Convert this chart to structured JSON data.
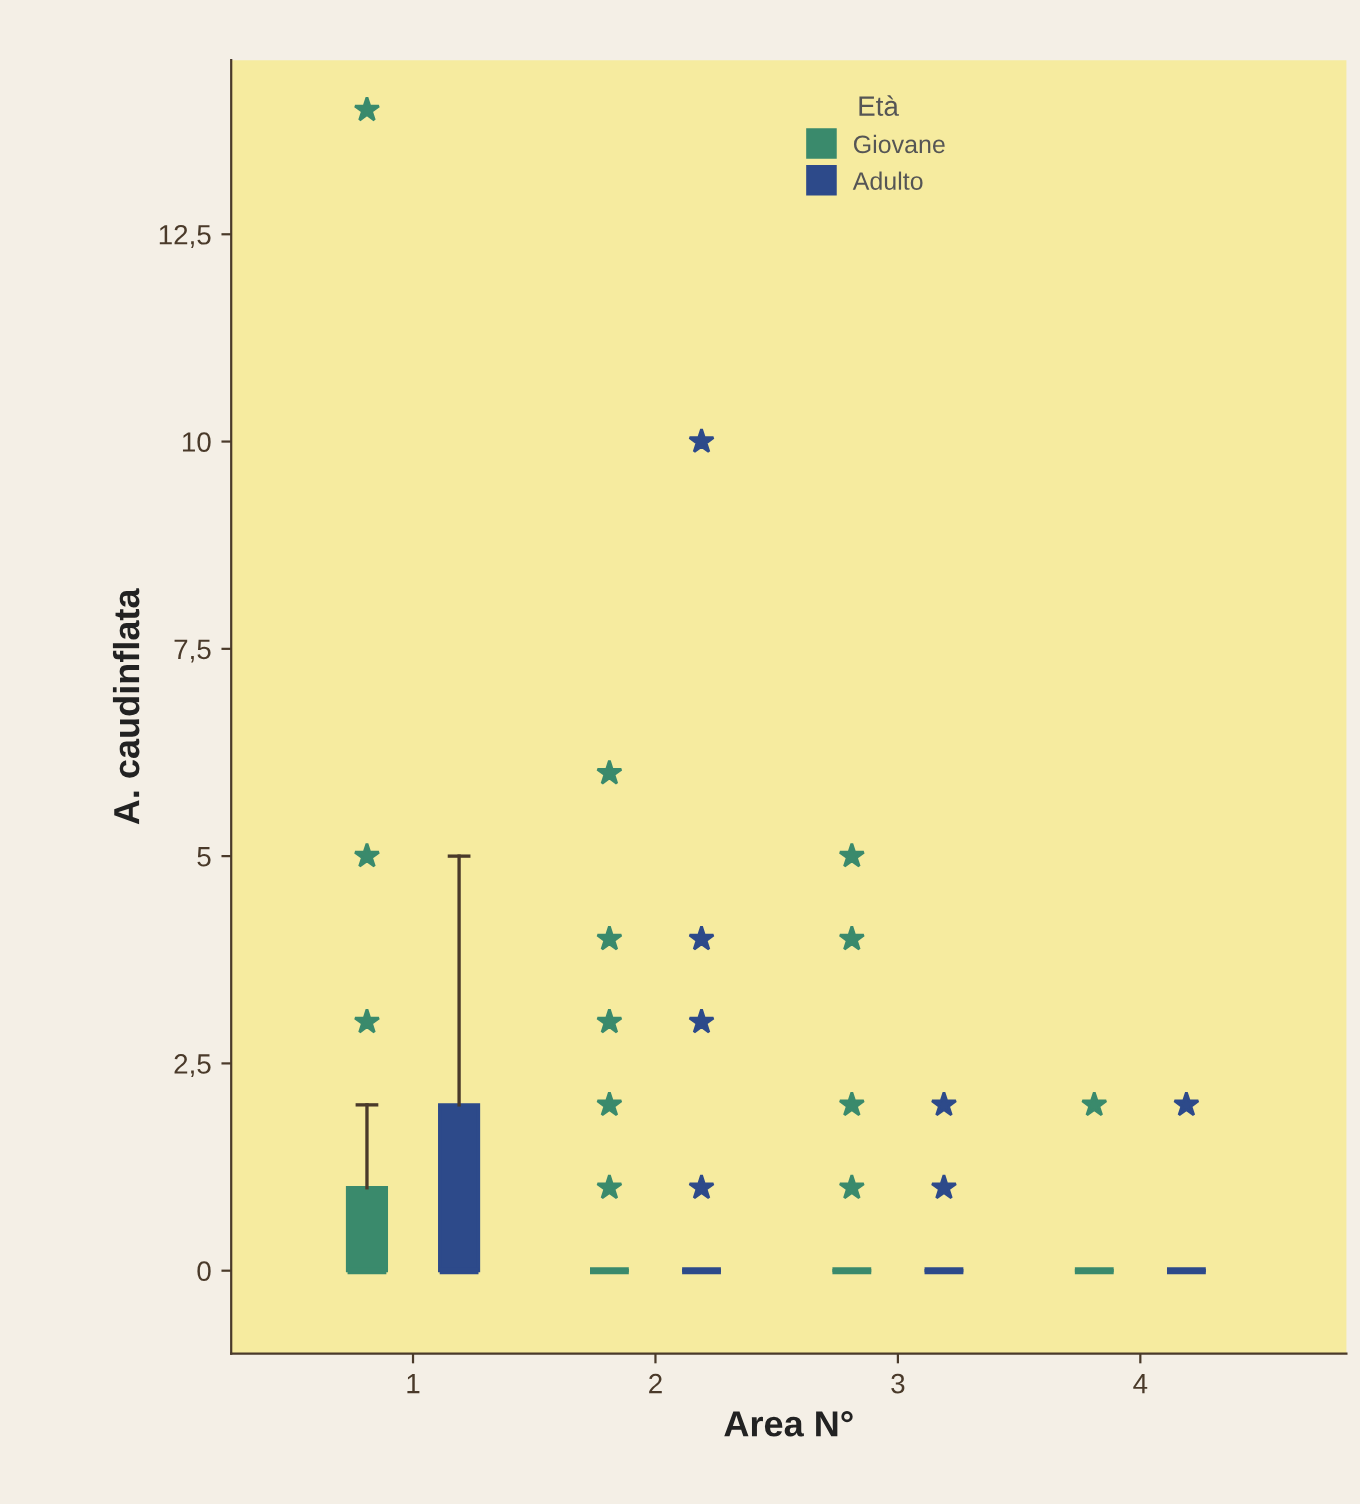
{
  "chart_data": {
    "type": "box",
    "xlabel": "Area N°",
    "ylabel": "A. caudinflata",
    "legend_title": "Età",
    "legend": "top",
    "categories": [
      "1",
      "2",
      "3",
      "4"
    ],
    "ylim": [
      -1,
      14.6
    ],
    "yticks": [
      {
        "value": 0,
        "label": "0"
      },
      {
        "value": 2.5,
        "label": "2,5"
      },
      {
        "value": 5,
        "label": "5"
      },
      {
        "value": 7.5,
        "label": "7,5"
      },
      {
        "value": 10,
        "label": "10"
      },
      {
        "value": 12.5,
        "label": "12,5"
      }
    ],
    "grid": false,
    "marker": "star",
    "series": [
      {
        "name": "Giovane",
        "color": "#3a8a6c",
        "boxes": [
          {
            "low": 0,
            "q1": 0,
            "median": 0,
            "q3": 1,
            "high": 2,
            "outliers": [
              3,
              5,
              14
            ]
          },
          {
            "low": 0,
            "q1": 0,
            "median": 0,
            "q3": 0,
            "high": 0,
            "outliers": [
              1,
              2,
              3,
              4,
              6
            ]
          },
          {
            "low": 0,
            "q1": 0,
            "median": 0,
            "q3": 0,
            "high": 0,
            "outliers": [
              1,
              2,
              4,
              5
            ]
          },
          {
            "low": 0,
            "q1": 0,
            "median": 0,
            "q3": 0,
            "high": 0,
            "outliers": [
              2
            ]
          }
        ]
      },
      {
        "name": "Adulto",
        "color": "#2d4a8a",
        "boxes": [
          {
            "low": 0,
            "q1": 0,
            "median": 0,
            "q3": 2,
            "high": 5
          },
          {
            "low": 0,
            "q1": 0,
            "median": 0,
            "q3": 0,
            "high": 0,
            "outliers": [
              1,
              3,
              4,
              10
            ]
          },
          {
            "low": 0,
            "q1": 0,
            "median": 0,
            "q3": 0,
            "high": 0,
            "outliers": [
              1,
              2
            ]
          },
          {
            "low": 0,
            "q1": 0,
            "median": 0,
            "q3": 0,
            "high": 0,
            "outliers": [
              2
            ]
          }
        ]
      }
    ]
  }
}
